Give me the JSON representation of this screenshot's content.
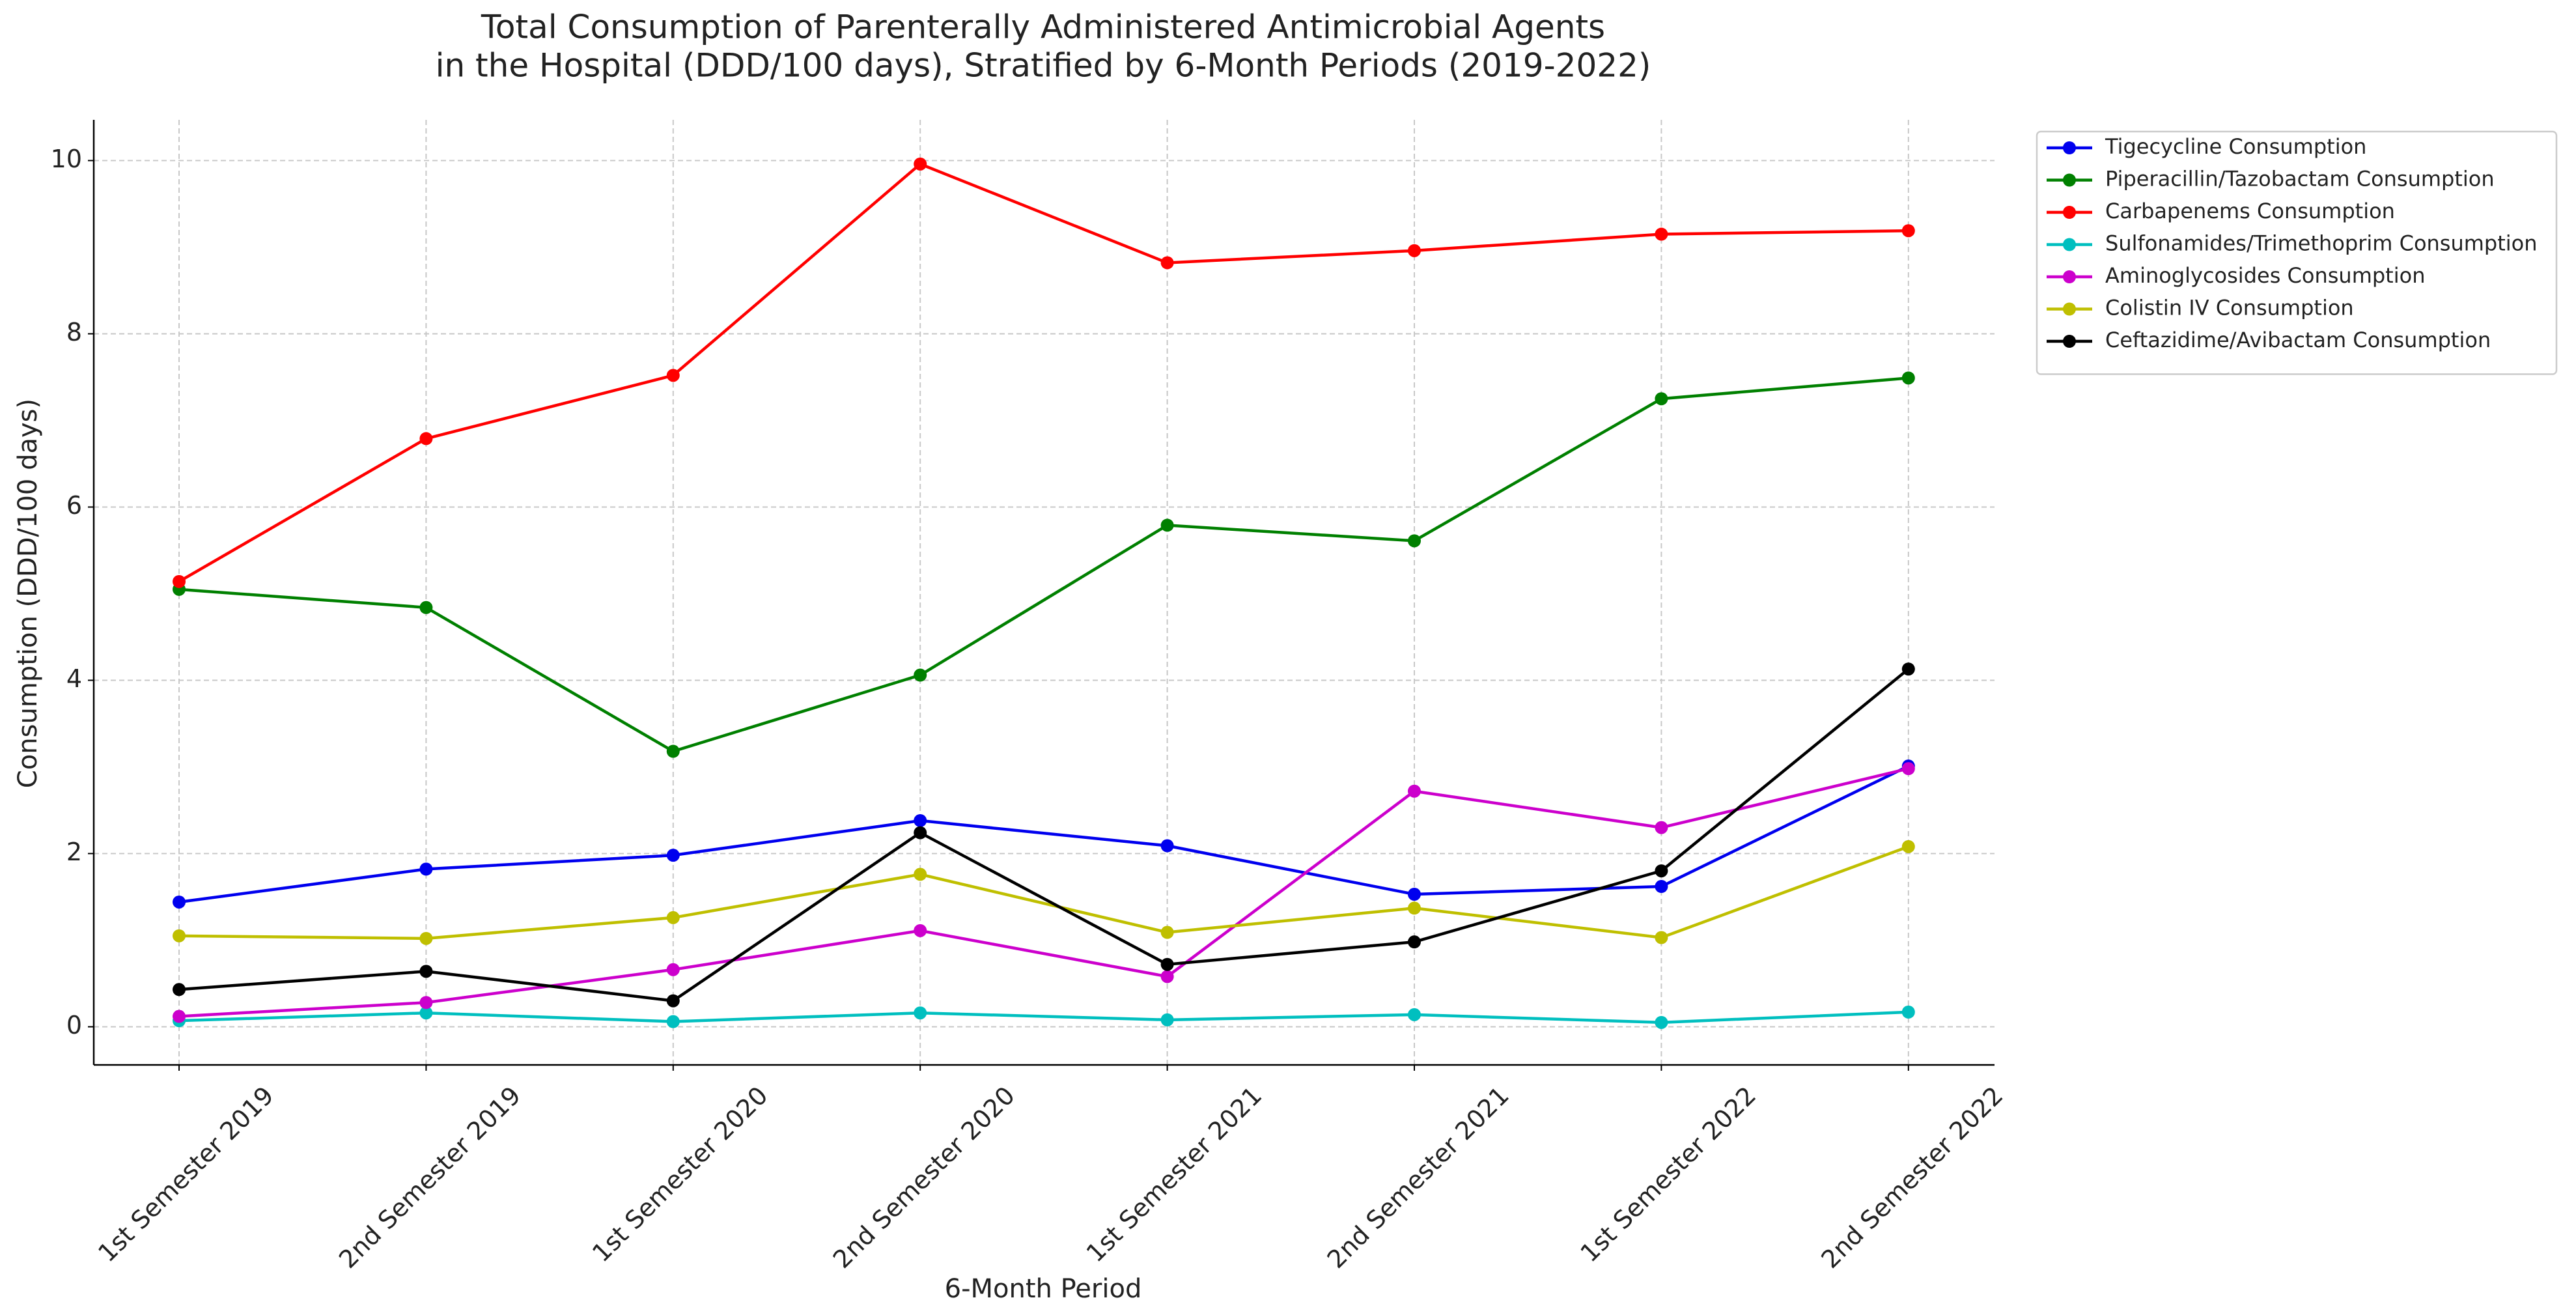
{
  "chart_data": {
    "type": "line",
    "title": [
      "Total Consumption of Parenterally Administered Antimicrobial Agents",
      "in the Hospital (DDD/100 days), Stratified by 6-Month Periods (2019-2022)"
    ],
    "x_label": "6-Month Period",
    "y_label": "Consumption (DDD/100 days)",
    "categories": [
      "1st Semester 2019",
      "2nd Semester 2019",
      "1st Semester 2020",
      "2nd Semester 2020",
      "1st Semester 2021",
      "2nd Semester 2021",
      "1st Semester 2022",
      "2nd Semester 2022"
    ],
    "series": [
      {
        "name": "Tigecycline Consumption",
        "color": "#0000ee",
        "values": [
          1.44,
          1.82,
          1.98,
          2.38,
          2.09,
          1.53,
          1.62,
          3.01
        ]
      },
      {
        "name": "Piperacillin/Tazobactam Consumption",
        "color": "#008000",
        "values": [
          5.05,
          4.84,
          3.18,
          4.06,
          5.79,
          5.61,
          7.25,
          7.49
        ]
      },
      {
        "name": "Carbapenems Consumption",
        "color": "#ff0000",
        "values": [
          5.14,
          6.79,
          7.52,
          9.96,
          8.82,
          8.96,
          9.15,
          9.19
        ]
      },
      {
        "name": "Sulfonamides/Trimethoprim Consumption",
        "color": "#00bfbf",
        "values": [
          0.07,
          0.16,
          0.06,
          0.16,
          0.08,
          0.14,
          0.05,
          0.17
        ]
      },
      {
        "name": "Aminoglycosides Consumption",
        "color": "#cc00cc",
        "values": [
          0.12,
          0.28,
          0.66,
          1.11,
          0.58,
          2.72,
          2.3,
          2.98
        ]
      },
      {
        "name": "Colistin IV Consumption",
        "color": "#bfbf00",
        "values": [
          1.05,
          1.02,
          1.26,
          1.76,
          1.09,
          1.37,
          1.03,
          2.08
        ]
      },
      {
        "name": "Ceftazidime/Avibactam Consumption",
        "color": "#000000",
        "values": [
          0.43,
          0.64,
          0.3,
          2.24,
          0.72,
          0.98,
          1.8,
          4.13
        ]
      }
    ],
    "ylim": [
      -0.44,
      10.47
    ],
    "yticks": [
      0,
      2,
      4,
      6,
      8,
      10
    ],
    "grid": true,
    "legend": "outside-upper-right"
  }
}
